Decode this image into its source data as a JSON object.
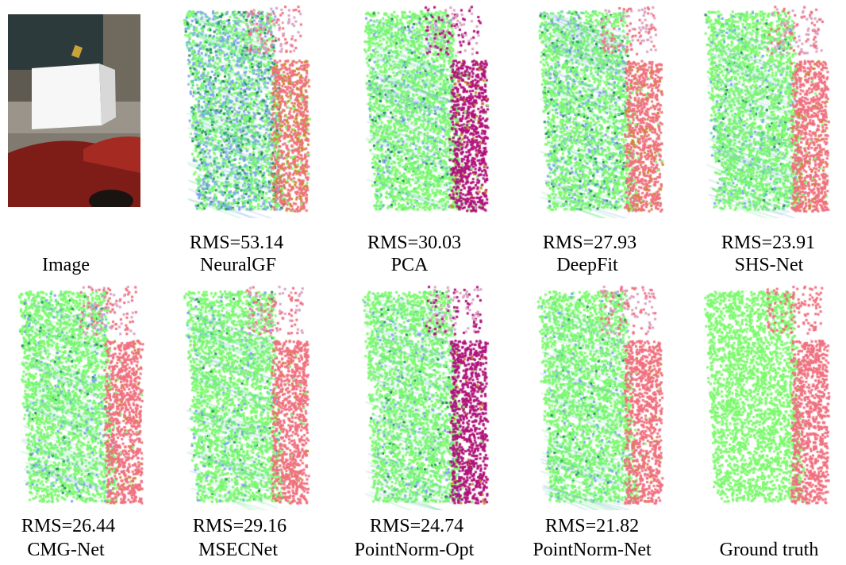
{
  "figure": {
    "panels": [
      {
        "id": "image",
        "method": "Image",
        "rms": null
      },
      {
        "id": "neuralgf",
        "method": "NeuralGF",
        "rms": "RMS=53.14"
      },
      {
        "id": "pca",
        "method": "PCA",
        "rms": "RMS=30.03"
      },
      {
        "id": "deepfit",
        "method": "DeepFit",
        "rms": "RMS=27.93"
      },
      {
        "id": "shsnet",
        "method": "SHS-Net",
        "rms": "RMS=23.91"
      },
      {
        "id": "cmgnet",
        "method": "CMG-Net",
        "rms": "RMS=26.44"
      },
      {
        "id": "msecnet",
        "method": "MSECNet",
        "rms": "RMS=29.16"
      },
      {
        "id": "pointnormopt",
        "method": "PointNorm-Opt",
        "rms": "RMS=24.74"
      },
      {
        "id": "pointnormnet",
        "method": "PointNorm-Net",
        "rms": "RMS=21.82"
      },
      {
        "id": "groundtruth",
        "method": "Ground truth",
        "rms": null
      }
    ],
    "colors": {
      "front_green": "#7dfa6e",
      "side_pink": "#f0707f",
      "side_magenta": "#b0127a",
      "noise_blue": "#7fa3f0",
      "dark_green": "#1d8a55"
    }
  }
}
